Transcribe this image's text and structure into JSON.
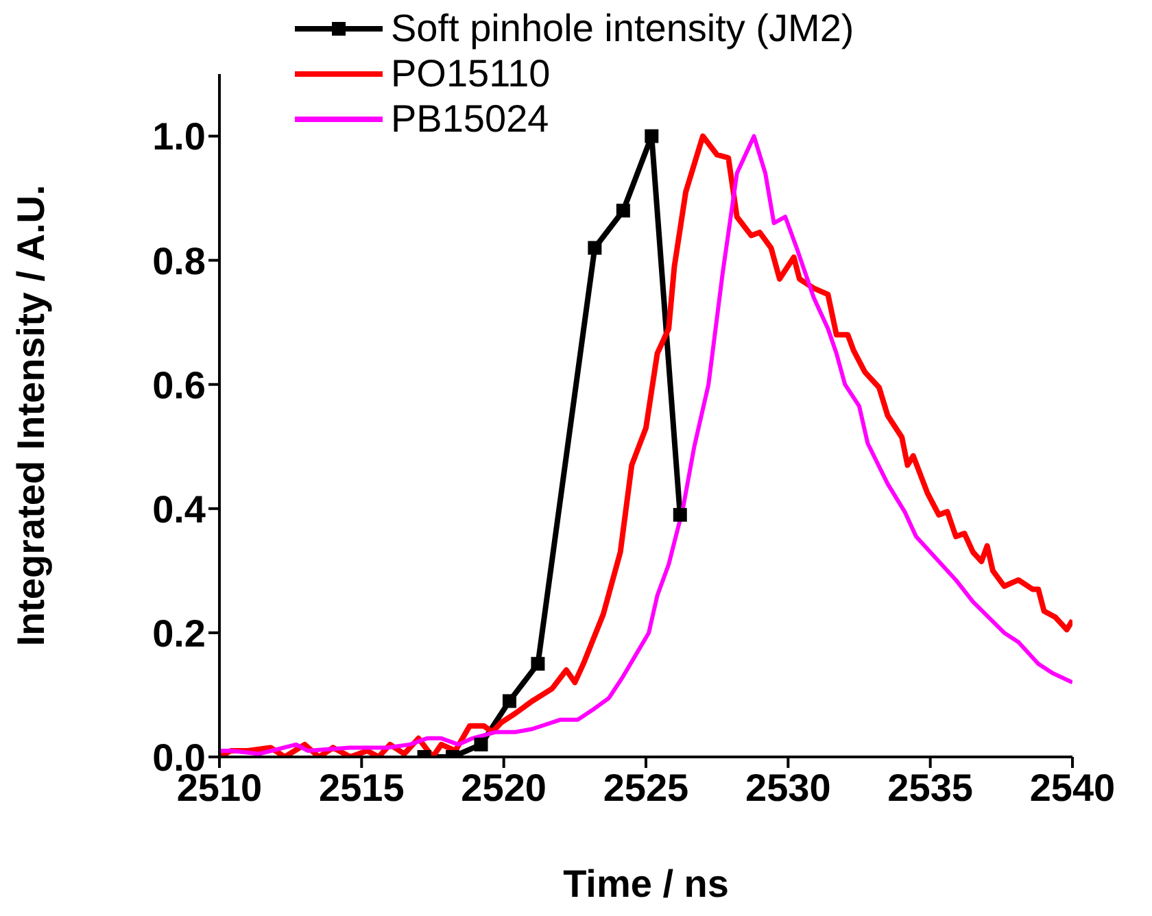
{
  "chart_data": {
    "type": "line",
    "xlabel": "Time / ns",
    "ylabel": "Integrated Intensity / A.U.",
    "xlim": [
      2510,
      2540
    ],
    "xticks": [
      2510,
      2515,
      2520,
      2525,
      2530,
      2535,
      2540
    ],
    "ylim": [
      0,
      1.1
    ],
    "yticks": [
      {
        "value": 0,
        "label": "0.0"
      },
      {
        "value": 0.2,
        "label": "0.2"
      },
      {
        "value": 0.4,
        "label": "0.4"
      },
      {
        "value": 0.6,
        "label": "0.6"
      },
      {
        "value": 0.8,
        "label": "0.8"
      },
      {
        "value": 1,
        "label": "1.0"
      }
    ],
    "grid": false,
    "legend": "top left",
    "line_style": "solid",
    "series": [
      {
        "name": "Soft pinhole intensity (JM2)",
        "color": "#000000",
        "marker": "square",
        "x": [
          2517.2,
          2518.2,
          2519.2,
          2520.2,
          2521.2,
          2523.2,
          2524.2,
          2525.2,
          2526.2
        ],
        "values": [
          0.0,
          0.0,
          0.02,
          0.09,
          0.15,
          0.82,
          0.88,
          1.0,
          0.39
        ]
      },
      {
        "name": "PO15110",
        "color": "#ff0000",
        "marker": "none",
        "x": [
          2510,
          2510.4,
          2511.0,
          2511.8,
          2512.3,
          2513.0,
          2513.5,
          2514.0,
          2514.6,
          2515.2,
          2515.6,
          2516.0,
          2516.5,
          2517.0,
          2517.5,
          2517.8,
          2518.3,
          2518.8,
          2519.3,
          2519.6,
          2519.9,
          2520.4,
          2521.0,
          2521.7,
          2522.2,
          2522.5,
          2522.8,
          2523.5,
          2524.1,
          2524.5,
          2525.0,
          2525.4,
          2525.8,
          2526.0,
          2526.4,
          2527.0,
          2527.5,
          2527.9,
          2528.2,
          2528.7,
          2529.0,
          2529.4,
          2529.7,
          2530.2,
          2530.4,
          2530.9,
          2531.4,
          2531.7,
          2532.1,
          2532.3,
          2532.7,
          2533.2,
          2533.5,
          2534.0,
          2534.2,
          2534.4,
          2534.9,
          2535.3,
          2535.6,
          2535.9,
          2536.2,
          2536.5,
          2536.8,
          2537.0,
          2537.2,
          2537.6,
          2538.1,
          2538.6,
          2538.8,
          2539.0,
          2539.4,
          2539.8,
          2540
        ],
        "values": [
          0.0,
          0.01,
          0.01,
          0.015,
          0.0,
          0.02,
          0.0,
          0.015,
          0.0,
          0.01,
          0.0,
          0.02,
          0.005,
          0.03,
          0.0,
          0.02,
          0.01,
          0.05,
          0.05,
          0.04,
          0.055,
          0.07,
          0.09,
          0.11,
          0.14,
          0.12,
          0.15,
          0.23,
          0.33,
          0.47,
          0.53,
          0.65,
          0.69,
          0.79,
          0.91,
          1.0,
          0.97,
          0.965,
          0.87,
          0.84,
          0.845,
          0.82,
          0.77,
          0.805,
          0.77,
          0.755,
          0.745,
          0.68,
          0.68,
          0.655,
          0.62,
          0.595,
          0.55,
          0.515,
          0.47,
          0.485,
          0.425,
          0.39,
          0.395,
          0.355,
          0.36,
          0.33,
          0.315,
          0.34,
          0.3,
          0.275,
          0.285,
          0.27,
          0.27,
          0.235,
          0.225,
          0.205,
          0.22
        ]
      },
      {
        "name": "PB15024",
        "color": "#ff00ff",
        "marker": "none",
        "x": [
          2510,
          2510.4,
          2511.4,
          2512.7,
          2513.1,
          2514.6,
          2515.9,
          2516.7,
          2517.3,
          2517.8,
          2518.4,
          2518.9,
          2519.7,
          2520.4,
          2521.0,
          2522.0,
          2522.6,
          2523.1,
          2523.7,
          2524.2,
          2525.1,
          2525.4,
          2525.8,
          2526.3,
          2526.7,
          2527.2,
          2527.7,
          2528.2,
          2528.8,
          2529.2,
          2529.5,
          2529.9,
          2530.3,
          2530.9,
          2531.4,
          2531.7,
          2532.0,
          2532.5,
          2532.8,
          2533.5,
          2534.1,
          2534.5,
          2535.2,
          2535.9,
          2536.5,
          2537.6,
          2538.1,
          2538.8,
          2539.3,
          2540
        ],
        "values": [
          0.01,
          0.01,
          0.005,
          0.02,
          0.01,
          0.015,
          0.015,
          0.02,
          0.03,
          0.03,
          0.02,
          0.03,
          0.04,
          0.04,
          0.045,
          0.06,
          0.06,
          0.075,
          0.095,
          0.13,
          0.2,
          0.26,
          0.31,
          0.4,
          0.5,
          0.6,
          0.78,
          0.94,
          1.0,
          0.94,
          0.86,
          0.87,
          0.82,
          0.74,
          0.69,
          0.65,
          0.6,
          0.565,
          0.505,
          0.44,
          0.395,
          0.355,
          0.32,
          0.285,
          0.25,
          0.2,
          0.185,
          0.15,
          0.135,
          0.12
        ]
      }
    ]
  }
}
